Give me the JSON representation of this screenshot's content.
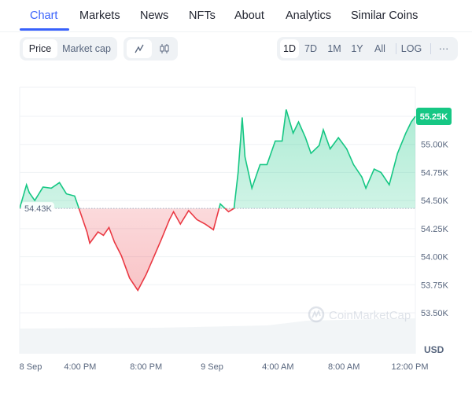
{
  "tabs": [
    {
      "label": "Chart",
      "active": true
    },
    {
      "label": "Markets"
    },
    {
      "label": "News"
    },
    {
      "label": "NFTs"
    },
    {
      "label": "About"
    },
    {
      "label": "Analytics"
    },
    {
      "label": "Similar Coins"
    }
  ],
  "toolbar": {
    "metric": [
      {
        "label": "Price",
        "active": true
      },
      {
        "label": "Market cap"
      }
    ],
    "chart_type": [
      {
        "icon": "line-chart-icon",
        "active": true
      },
      {
        "icon": "candlestick-icon"
      }
    ],
    "ranges": [
      {
        "label": "1D",
        "active": true
      },
      {
        "label": "7D"
      },
      {
        "label": "1M"
      },
      {
        "label": "1Y"
      },
      {
        "label": "All"
      }
    ],
    "log_label": "LOG",
    "more_label": "···"
  },
  "colors": {
    "accent": "#3861fb",
    "up": "#16c784",
    "down": "#ea3943"
  },
  "watermark": "CoinMarketCap",
  "chart_data": {
    "type": "line",
    "currency_label": "USD",
    "baseline": 54.43,
    "baseline_label": "54.43K",
    "current_label": "55.25K",
    "ylim": [
      53.42,
      55.5
    ],
    "xlim": [
      "8 Sep 12:20",
      "9 Sep 12:20"
    ],
    "yticks": [
      {
        "value": 55.0,
        "label": "55.00K"
      },
      {
        "value": 54.75,
        "label": "54.75K"
      },
      {
        "value": 54.5,
        "label": "54.50K"
      },
      {
        "value": 54.25,
        "label": "54.25K"
      },
      {
        "value": 54.0,
        "label": "54.00K"
      },
      {
        "value": 53.75,
        "label": "53.75K"
      },
      {
        "value": 53.5,
        "label": "53.50K"
      }
    ],
    "ygrid_extra": [
      55.25
    ],
    "xticks": [
      {
        "time": "8 Sep 13:00",
        "label": "8 Sep"
      },
      {
        "time": "8 Sep 16:00",
        "label": "4:00 PM"
      },
      {
        "time": "8 Sep 20:00",
        "label": "8:00 PM"
      },
      {
        "time": "9 Sep 00:00",
        "label": "9 Sep"
      },
      {
        "time": "9 Sep 04:00",
        "label": "4:00 AM"
      },
      {
        "time": "9 Sep 08:00",
        "label": "8:00 AM"
      },
      {
        "time": "9 Sep 12:00",
        "label": "12:00 PM"
      }
    ],
    "points": [
      [
        "8 Sep 12:20",
        54.43
      ],
      [
        "8 Sep 12:45",
        54.64
      ],
      [
        "8 Sep 12:55",
        54.57
      ],
      [
        "8 Sep 13:15",
        54.5
      ],
      [
        "8 Sep 13:45",
        54.62
      ],
      [
        "8 Sep 14:15",
        54.61
      ],
      [
        "8 Sep 14:45",
        54.66
      ],
      [
        "8 Sep 15:10",
        54.56
      ],
      [
        "8 Sep 15:40",
        54.54
      ],
      [
        "8 Sep 16:00",
        54.4
      ],
      [
        "8 Sep 16:25",
        54.22
      ],
      [
        "8 Sep 16:35",
        54.12
      ],
      [
        "8 Sep 17:05",
        54.22
      ],
      [
        "8 Sep 17:25",
        54.19
      ],
      [
        "8 Sep 17:45",
        54.26
      ],
      [
        "8 Sep 18:05",
        54.13
      ],
      [
        "8 Sep 18:30",
        54.01
      ],
      [
        "8 Sep 19:00",
        53.81
      ],
      [
        "8 Sep 19:30",
        53.7
      ],
      [
        "8 Sep 20:00",
        53.84
      ],
      [
        "8 Sep 20:25",
        53.98
      ],
      [
        "8 Sep 20:55",
        54.15
      ],
      [
        "8 Sep 21:25",
        54.33
      ],
      [
        "8 Sep 21:40",
        54.4
      ],
      [
        "8 Sep 22:05",
        54.29
      ],
      [
        "8 Sep 22:35",
        54.41
      ],
      [
        "8 Sep 23:05",
        54.33
      ],
      [
        "8 Sep 23:35",
        54.29
      ],
      [
        "9 Sep 00:05",
        54.24
      ],
      [
        "9 Sep 00:30",
        54.47
      ],
      [
        "9 Sep 01:00",
        54.4
      ],
      [
        "9 Sep 01:20",
        54.43
      ],
      [
        "9 Sep 01:35",
        54.75
      ],
      [
        "9 Sep 01:50",
        55.24
      ],
      [
        "9 Sep 02:00",
        54.89
      ],
      [
        "9 Sep 02:25",
        54.61
      ],
      [
        "9 Sep 02:55",
        54.82
      ],
      [
        "9 Sep 03:20",
        54.82
      ],
      [
        "9 Sep 03:50",
        55.03
      ],
      [
        "9 Sep 04:15",
        55.03
      ],
      [
        "9 Sep 04:30",
        55.31
      ],
      [
        "9 Sep 04:55",
        55.1
      ],
      [
        "9 Sep 05:15",
        55.2
      ],
      [
        "9 Sep 05:40",
        55.06
      ],
      [
        "9 Sep 06:00",
        54.92
      ],
      [
        "9 Sep 06:30",
        54.99
      ],
      [
        "9 Sep 06:45",
        55.13
      ],
      [
        "9 Sep 07:10",
        54.96
      ],
      [
        "9 Sep 07:40",
        55.06
      ],
      [
        "9 Sep 08:10",
        54.96
      ],
      [
        "9 Sep 08:35",
        54.82
      ],
      [
        "9 Sep 09:05",
        54.71
      ],
      [
        "9 Sep 09:20",
        54.61
      ],
      [
        "9 Sep 09:50",
        54.78
      ],
      [
        "9 Sep 10:15",
        54.75
      ],
      [
        "9 Sep 10:45",
        54.64
      ],
      [
        "9 Sep 11:15",
        54.92
      ],
      [
        "9 Sep 11:45",
        55.1
      ],
      [
        "9 Sep 12:05",
        55.2
      ],
      [
        "9 Sep 12:20",
        55.25
      ]
    ]
  }
}
